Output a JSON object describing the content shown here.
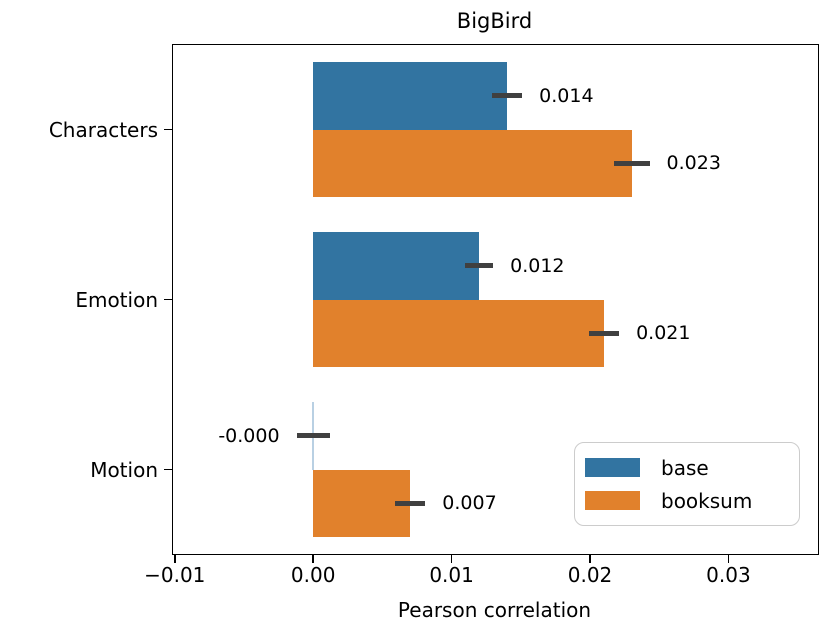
{
  "chart_data": {
    "type": "bar",
    "orientation": "horizontal",
    "title": "BigBird",
    "xlabel": "Pearson correlation",
    "categories": [
      "Characters",
      "Emotion",
      "Motion"
    ],
    "series": [
      {
        "name": "base",
        "color": "#3274a1",
        "values": [
          0.014,
          0.012,
          -0.0
        ],
        "errors": [
          0.0011,
          0.001,
          0.0012
        ],
        "value_labels": [
          "0.014",
          "0.012",
          "-0.000"
        ]
      },
      {
        "name": "booksum",
        "color": "#e1812c",
        "values": [
          0.023,
          0.021,
          0.007
        ],
        "errors": [
          0.0013,
          0.0011,
          0.0011
        ],
        "value_labels": [
          "0.023",
          "0.021",
          "0.007"
        ]
      }
    ],
    "xlim": [
      -0.0102,
      0.0364
    ],
    "xticks": [
      -0.01,
      0.0,
      0.01,
      0.02,
      0.03
    ],
    "xtick_labels": [
      "−0.01",
      "0.00",
      "0.01",
      "0.02",
      "0.03"
    ],
    "grid": false,
    "legend_position": "lower right",
    "error_bar_color": "#404040",
    "zero_width_bar_line_color": "#b9d0e3"
  }
}
